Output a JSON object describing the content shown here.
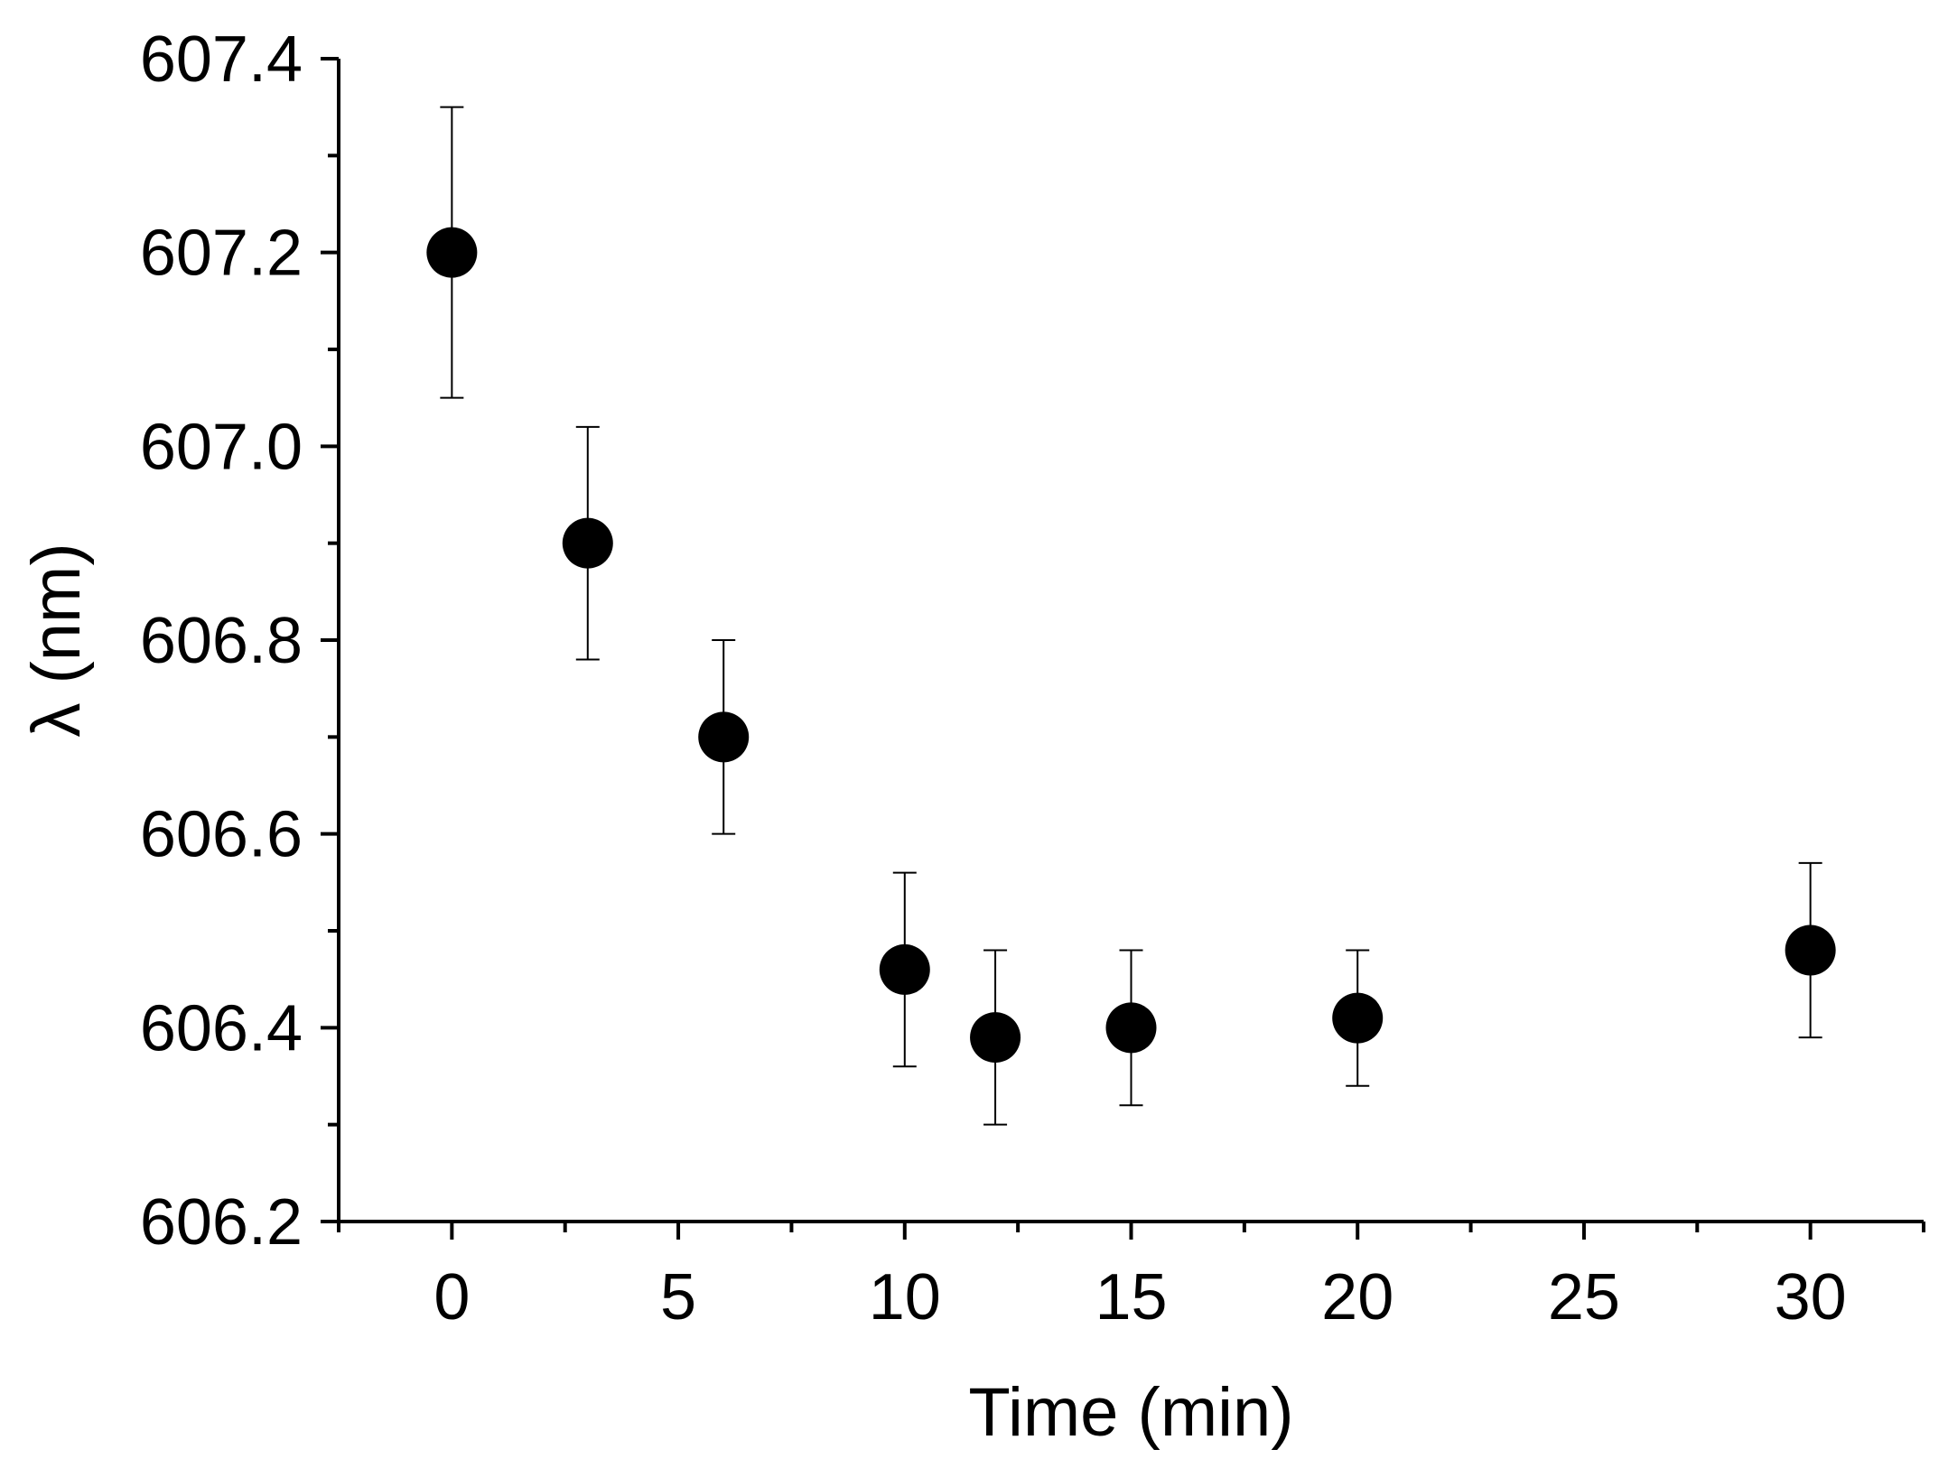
{
  "chart_data": {
    "type": "scatter",
    "xlabel": "Time (min)",
    "ylabel": "λ (nm)",
    "xlim": [
      -2.5,
      32.5
    ],
    "ylim": [
      606.2,
      607.4
    ],
    "x_ticks": [
      0,
      5,
      10,
      15,
      20,
      25,
      30
    ],
    "x_tick_labels": [
      "0",
      "5",
      "10",
      "15",
      "20",
      "25",
      "30"
    ],
    "x_minor_ticks": [
      -2.5,
      2.5,
      7.5,
      12.5,
      17.5,
      22.5,
      27.5,
      32.5
    ],
    "y_ticks": [
      606.2,
      606.4,
      606.6,
      606.8,
      607.0,
      607.2,
      607.4
    ],
    "y_tick_labels": [
      "606.2",
      "606.4",
      "606.6",
      "606.8",
      "607.0",
      "607.2",
      "607.4"
    ],
    "y_minor_ticks": [
      606.3,
      606.5,
      606.7,
      606.9,
      607.1,
      607.3
    ],
    "grid": false,
    "marker_color": "#000000",
    "series": [
      {
        "x": [
          0,
          3,
          6,
          10,
          12,
          15,
          20,
          30
        ],
        "y": [
          607.2,
          606.9,
          606.7,
          606.46,
          606.39,
          606.4,
          606.41,
          606.48
        ],
        "error_low": [
          607.05,
          606.78,
          606.6,
          606.36,
          606.3,
          606.32,
          606.34,
          606.39
        ],
        "error_high": [
          607.35,
          607.02,
          606.8,
          606.56,
          606.48,
          606.48,
          606.48,
          606.57
        ]
      }
    ]
  }
}
